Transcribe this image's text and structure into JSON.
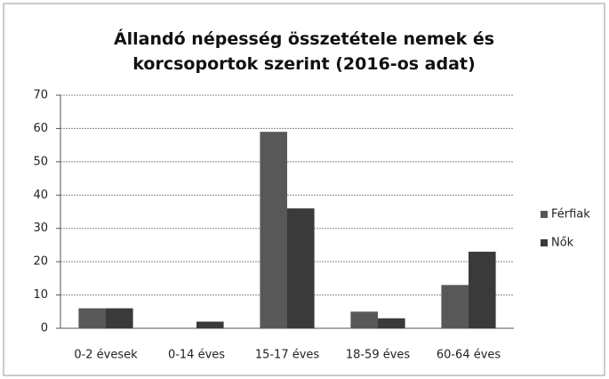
{
  "chart_data": {
    "type": "bar",
    "title": "Állandó népesség összetétele nemek és korcsoportok szerint (2016-os adat)",
    "categories": [
      "0-2 évesek",
      "0-14 éves",
      "15-17 éves",
      "18-59 éves",
      "60-64 éves"
    ],
    "series": [
      {
        "name": "Férfiak",
        "color": "#585858",
        "values": [
          6,
          0,
          59,
          5,
          13
        ]
      },
      {
        "name": "Nők",
        "color": "#3a3a3a",
        "values": [
          6,
          2,
          36,
          3,
          23
        ]
      }
    ],
    "ylim": [
      0,
      70
    ],
    "yticks": [
      0,
      10,
      20,
      30,
      40,
      50,
      60,
      70
    ],
    "grid": true,
    "legend": "right"
  }
}
